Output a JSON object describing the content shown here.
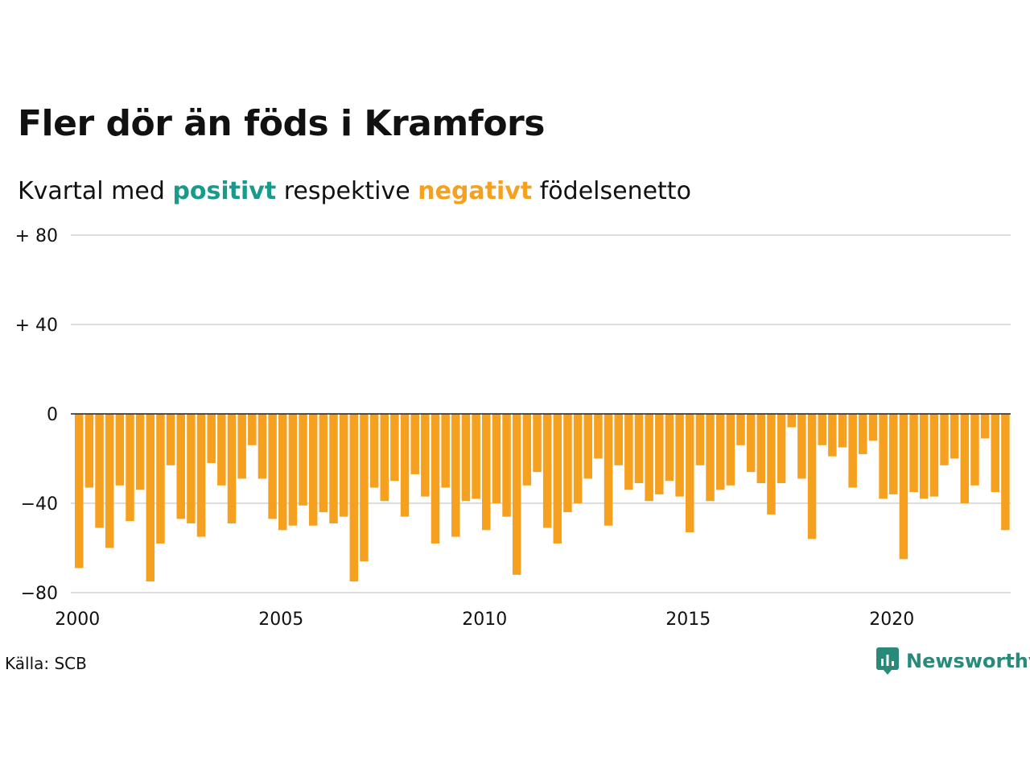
{
  "title": "Fler dör än föds i Kramfors",
  "subtitle": {
    "pre": "Kvartal med",
    "positive_word": "positivt",
    "middle": "respektive",
    "negative_word": "negativt",
    "post": "födelsenetto"
  },
  "source": "Källa: SCB",
  "brand": "Newsworthy",
  "colors": {
    "positive": "#1a9a8a",
    "negative": "#f5a01e",
    "grid": "#dddddd",
    "zero": "#222222"
  },
  "chart_data": {
    "type": "bar",
    "x_start": "2000 Q1",
    "ylim": [
      -80,
      80
    ],
    "y_ticks": [
      80,
      40,
      0,
      -40,
      -80
    ],
    "y_tick_labels": [
      "+ 80",
      "+ 40",
      "0",
      "−40",
      "−80"
    ],
    "x_ticks": [
      2000,
      2005,
      2010,
      2015,
      2020
    ],
    "x_tick_labels": [
      "2000",
      "2005",
      "2010",
      "2015",
      "2020"
    ],
    "grid": true,
    "values": [
      -69,
      -33,
      -51,
      -60,
      -32,
      -48,
      -34,
      -75,
      -58,
      -23,
      -47,
      -49,
      -55,
      -22,
      -32,
      -49,
      -29,
      -14,
      -29,
      -47,
      -52,
      -50,
      -41,
      -50,
      -44,
      -49,
      -46,
      -75,
      -66,
      -33,
      -39,
      -30,
      -46,
      -27,
      -37,
      -58,
      -33,
      -55,
      -39,
      -38,
      -52,
      -40,
      -46,
      -72,
      -32,
      -26,
      -51,
      -58,
      -44,
      -40,
      -29,
      -20,
      -50,
      -23,
      -34,
      -31,
      -39,
      -36,
      -30,
      -37,
      -53,
      -23,
      -39,
      -34,
      -32,
      -14,
      -26,
      -31,
      -45,
      -31,
      -6,
      -29,
      -56,
      -14,
      -19,
      -15,
      -33,
      -18,
      -12,
      -38,
      -36,
      -65,
      -35,
      -38,
      -37,
      -23,
      -20,
      -40,
      -32,
      -11,
      -35,
      -52
    ]
  }
}
